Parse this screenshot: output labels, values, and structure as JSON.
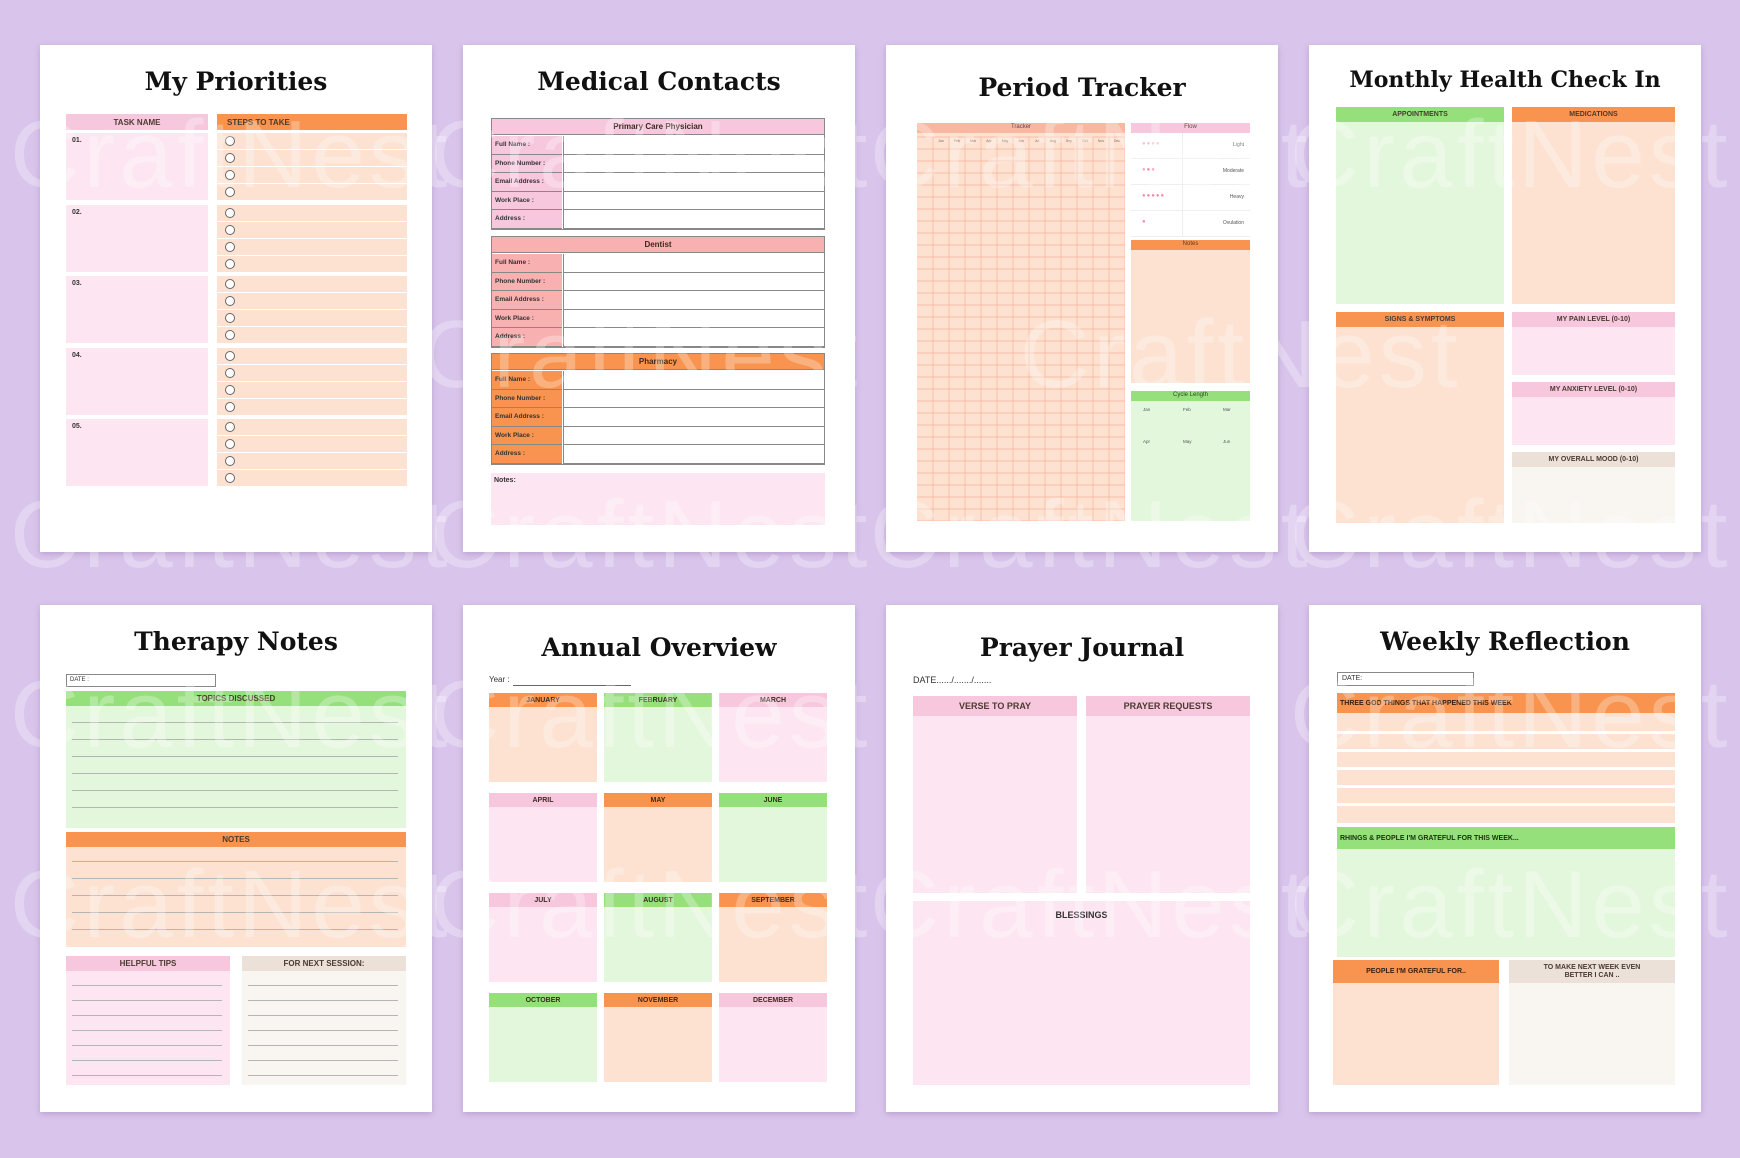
{
  "colors": {
    "background": "#d9c5ec",
    "pink": "#f7c8dd",
    "orange": "#f8944f",
    "green": "#95e07a",
    "beige": "#ebe1d9"
  },
  "watermark": "CraftNest",
  "priorities": {
    "title": "My Priorities",
    "task_header": "TASK NAME",
    "steps_header": "STEPS TO TAKE",
    "rows": [
      "01.",
      "02.",
      "03.",
      "04.",
      "05."
    ]
  },
  "medical": {
    "title": "Medical Contacts",
    "sections": [
      {
        "title": "Primary Care Physician",
        "fields": [
          "Full Name :",
          "Phone Number :",
          "Email Address :",
          "Work Place :",
          "Address :"
        ]
      },
      {
        "title": "Dentist",
        "fields": [
          "Full Name :",
          "Phone Number :",
          "Email Address :",
          "Work Place :",
          "Address :"
        ]
      },
      {
        "title": "Pharmacy",
        "fields": [
          "Full Name :",
          "Phone Number :",
          "Email Address :",
          "Work Place :",
          "Address :"
        ]
      }
    ],
    "notes_label": "Notes:"
  },
  "period": {
    "title": "Period Tracker",
    "tracker_label": "Tracker",
    "flow_label": "Flow",
    "flow_levels": [
      "Light",
      "Moderate",
      "Heavy",
      "Ovulation"
    ],
    "notes_label": "Notes",
    "cycle_label": "Cycle Length",
    "months": [
      "Jan",
      "Feb",
      "Mar",
      "Apr",
      "May",
      "Jun",
      "Jul",
      "Aug",
      "Sep",
      "Oct",
      "Nov",
      "Dec"
    ],
    "cycle_months": [
      "Jan",
      "Feb",
      "Mar",
      "Apr",
      "May",
      "Jun"
    ]
  },
  "monthly": {
    "title": "Monthly Health Check In",
    "appointments": "APPOINTMENTS",
    "medications": "MEDICATIONS",
    "signs": "SIGNS & SYMPTOMS",
    "pain": "MY PAIN LEVEL (0-10)",
    "anxiety": "MY ANXIETY LEVEL (0-10)",
    "mood": "MY OVERALL MOOD (0-10)"
  },
  "therapy": {
    "title": "Therapy Notes",
    "date_label": "DATE :",
    "topics": "TOPICS DISCUSSED",
    "notes": "NOTES",
    "tips": "HELPFUL TIPS",
    "next": "FOR NEXT SESSION:"
  },
  "annual": {
    "title": "Annual Overview",
    "year_label": "Year :",
    "months": [
      "JANUARY",
      "FEBRUARY",
      "MARCH",
      "APRIL",
      "MAY",
      "JUNE",
      "JULY",
      "AUGUST",
      "SEPTEMBER",
      "OCTOBER",
      "NOVEMBER",
      "DECEMBER"
    ]
  },
  "prayer": {
    "title": "Prayer Journal",
    "date_label": "DATE....../......./.......",
    "verse": "VERSE TO PRAY",
    "requests": "PRAYER REQUESTS",
    "blessings": "BLESSINGS"
  },
  "weekly": {
    "title": "Weekly Reflection",
    "date_label": "DATE:",
    "good": "THREE GOD THINGS THAT HAPPENED THIS WEEK",
    "grateful_week": "RHINGS & PEOPLE I'M GRATEFUL FOR THIS WEEK...",
    "people": "PEOPLE I'M GRATEFUL FOR..",
    "better": "TO MAKE NEXT WEEK EVEN BETTER I CAN .."
  }
}
